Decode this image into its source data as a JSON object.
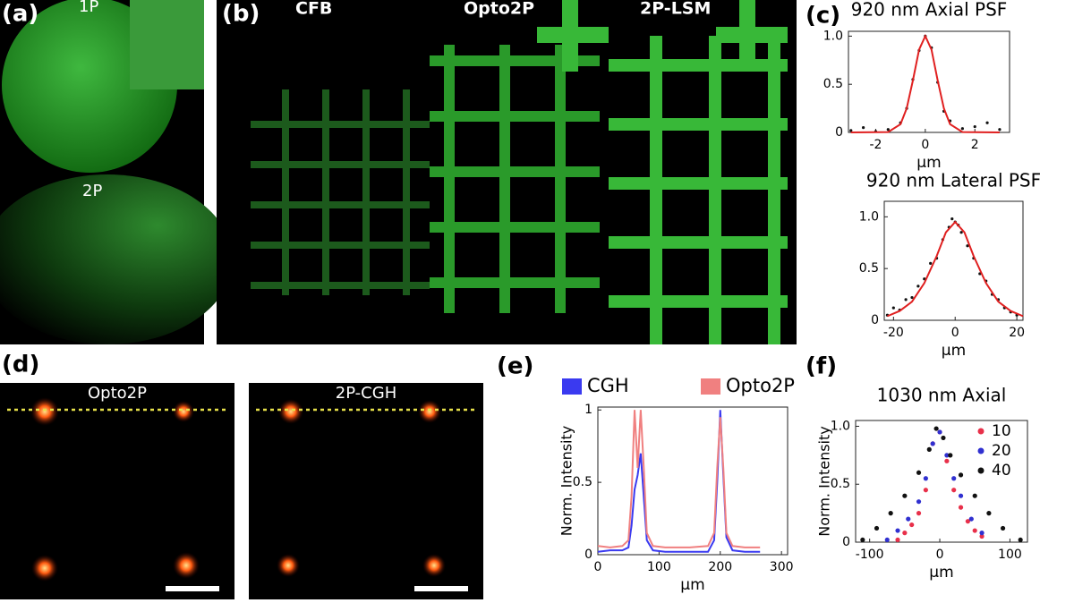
{
  "panels": {
    "a": "(a)",
    "b": "(b)",
    "c": "(c)",
    "d": "(d)",
    "e": "(e)",
    "f": "(f)"
  },
  "image_labels": {
    "a_top": "1P",
    "a_bottom": "2P",
    "b_1": "CFB",
    "b_2": "Opto2P",
    "b_3": "2P-LSM",
    "d_1": "Opto2P",
    "d_2": "2P-CGH"
  },
  "chart_data": [
    {
      "type": "line",
      "title": "920 nm Axial PSF",
      "x_label": "μm",
      "xlim": [
        -3.1,
        3.4
      ],
      "ylim": [
        0,
        1.05
      ],
      "xticks": [
        -2,
        0,
        2
      ],
      "yticks": [
        0,
        0.5,
        {
          "value": 1,
          "label": "1.0"
        }
      ],
      "series": [
        {
          "kind": "scatter",
          "color": "#111111",
          "x": [
            -3,
            -2.5,
            -2,
            -1.5,
            -1,
            -0.75,
            -0.5,
            -0.25,
            0,
            0.25,
            0.5,
            0.75,
            1,
            1.5,
            2,
            2.5,
            3
          ],
          "values": [
            0.02,
            0.05,
            0.01,
            0.03,
            0.1,
            0.25,
            0.55,
            0.85,
            1,
            0.88,
            0.52,
            0.22,
            0.12,
            0.04,
            0.06,
            0.1,
            0.03
          ]
        },
        {
          "kind": "line",
          "color": "#e02020",
          "x": [
            -3,
            -1.5,
            -1,
            -0.75,
            -0.5,
            -0.25,
            0,
            0.25,
            0.5,
            0.75,
            1,
            1.5,
            3
          ],
          "values": [
            0,
            0.004,
            0.085,
            0.25,
            0.54,
            0.86,
            1,
            0.86,
            0.54,
            0.25,
            0.085,
            0.004,
            0
          ]
        }
      ]
    },
    {
      "type": "line",
      "title": "920 nm Lateral PSF",
      "x_label": "μm",
      "xlim": [
        -23,
        22
      ],
      "ylim": [
        0,
        1.15
      ],
      "xticks": [
        -20,
        0,
        20
      ],
      "yticks": [
        0,
        0.5,
        {
          "value": 1,
          "label": "1.0"
        }
      ],
      "series": [
        {
          "kind": "scatter",
          "color": "#111111",
          "x": [
            -22,
            -20,
            -18,
            -16,
            -14,
            -12,
            -10,
            -8,
            -6,
            -4,
            -2,
            -1,
            0,
            1,
            2,
            4,
            6,
            8,
            10,
            12,
            14,
            16,
            18,
            20
          ],
          "values": [
            0.05,
            0.12,
            0.1,
            0.2,
            0.22,
            0.33,
            0.4,
            0.55,
            0.6,
            0.78,
            0.9,
            0.98,
            0.95,
            0.92,
            0.85,
            0.72,
            0.6,
            0.45,
            0.38,
            0.25,
            0.2,
            0.12,
            0.08,
            0.05
          ]
        },
        {
          "kind": "line",
          "color": "#e02020",
          "x": [
            -22,
            -18,
            -14,
            -10,
            -6,
            -3,
            0,
            3,
            6,
            10,
            14,
            18,
            22
          ],
          "values": [
            0.04,
            0.09,
            0.18,
            0.36,
            0.62,
            0.85,
            0.95,
            0.85,
            0.62,
            0.36,
            0.18,
            0.09,
            0.04
          ]
        }
      ]
    },
    {
      "type": "line",
      "x_label": "μm",
      "y_label": "Norm. Intensity",
      "legend": "top",
      "xlim": [
        0,
        310
      ],
      "ylim": [
        0,
        1.02
      ],
      "xticks": [
        0,
        100,
        200,
        300
      ],
      "yticks": [
        0,
        0.5,
        1
      ],
      "x": [
        0,
        20,
        40,
        50,
        55,
        60,
        65,
        70,
        75,
        80,
        90,
        110,
        150,
        180,
        190,
        195,
        200,
        205,
        210,
        220,
        240,
        265
      ],
      "series": [
        {
          "name": "CGH",
          "color": "#3a3af0",
          "values": [
            0.02,
            0.03,
            0.03,
            0.05,
            0.2,
            0.45,
            0.55,
            0.7,
            0.4,
            0.1,
            0.03,
            0.02,
            0.02,
            0.02,
            0.1,
            0.5,
            1,
            0.55,
            0.12,
            0.03,
            0.02,
            0.02
          ]
        },
        {
          "name": "Opto2P",
          "color": "#f08080",
          "values": [
            0.06,
            0.05,
            0.06,
            0.1,
            0.4,
            1,
            0.6,
            1,
            0.6,
            0.15,
            0.06,
            0.05,
            0.05,
            0.06,
            0.15,
            0.6,
            0.95,
            0.6,
            0.15,
            0.06,
            0.05,
            0.05
          ]
        }
      ]
    },
    {
      "type": "scatter",
      "title": "1030 nm Axial",
      "x_label": "μm",
      "y_label": "Norm. Intensity",
      "legend": "right",
      "xlim": [
        -120,
        125
      ],
      "ylim": [
        0,
        1.05
      ],
      "xticks": [
        -100,
        0,
        100
      ],
      "yticks": [
        0,
        0.5,
        {
          "value": 1,
          "label": "1.0"
        }
      ],
      "series": [
        {
          "name": "10",
          "color": "#e8304a",
          "x": [
            -60,
            -50,
            -40,
            -30,
            -20,
            -10,
            0,
            10,
            20,
            30,
            40,
            50,
            60
          ],
          "values": [
            0.02,
            0.08,
            0.15,
            0.25,
            0.45,
            0.85,
            0.95,
            0.7,
            0.45,
            0.3,
            0.18,
            0.1,
            0.05
          ]
        },
        {
          "name": "20",
          "color": "#3030d0",
          "x": [
            -75,
            -60,
            -45,
            -30,
            -20,
            -10,
            0,
            10,
            20,
            30,
            45,
            60
          ],
          "values": [
            0.02,
            0.1,
            0.2,
            0.35,
            0.55,
            0.85,
            0.95,
            0.75,
            0.55,
            0.4,
            0.2,
            0.08
          ]
        },
        {
          "name": "40",
          "color": "#111111",
          "x": [
            -110,
            -90,
            -70,
            -50,
            -30,
            -15,
            -5,
            5,
            15,
            30,
            50,
            70,
            90,
            115
          ],
          "values": [
            0.02,
            0.12,
            0.25,
            0.4,
            0.6,
            0.8,
            0.98,
            0.9,
            0.75,
            0.58,
            0.4,
            0.25,
            0.12,
            0.02
          ]
        }
      ]
    }
  ]
}
